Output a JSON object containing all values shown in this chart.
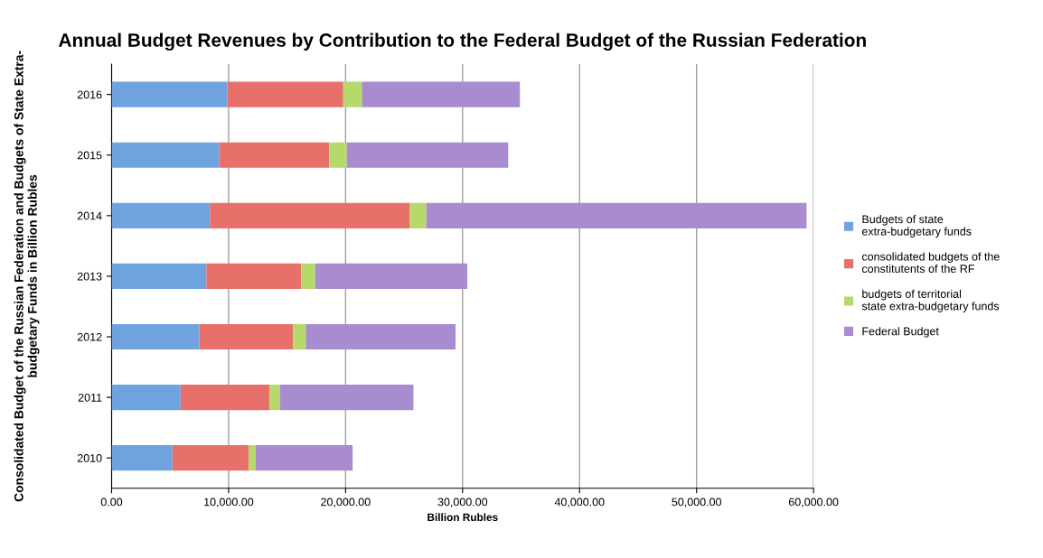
{
  "chart_data": {
    "type": "bar",
    "orientation": "horizontal",
    "stacked": true,
    "title": "Annual Budget Revenues by Contribution to the Federal Budget of the Russian Federation",
    "xlabel": "Billion Rubles",
    "ylabel": "Consolidated Budget of the Russian Federation and Budgets of State Extra-\nbudgetary Funds in Billion Rubles",
    "categories": [
      "2016",
      "2015",
      "2014",
      "2013",
      "2012",
      "2011",
      "2010"
    ],
    "series": [
      {
        "name": "Budgets of state\nextra-budgetary funds",
        "color": "#6fa3e0",
        "values": [
          9900,
          9200,
          8400,
          8100,
          7500,
          5900,
          5200
        ]
      },
      {
        "name": "consolidated budgets of the\nconstitutents of the RF",
        "color": "#e8706a",
        "values": [
          9900,
          9400,
          17100,
          8100,
          8000,
          7600,
          6500
        ]
      },
      {
        "name": "budgets of territorial\nstate extra-budgetary funds",
        "color": "#b5d96a",
        "values": [
          1600,
          1500,
          1400,
          1200,
          1100,
          900,
          600
        ]
      },
      {
        "name": "Federal Budget",
        "color": "#a98bcf",
        "values": [
          13500,
          13800,
          32500,
          13000,
          12800,
          11400,
          8300
        ]
      }
    ],
    "xlim": [
      0,
      60000
    ],
    "xticks": [
      {
        "value": 0,
        "label": "0.00"
      },
      {
        "value": 10000,
        "label": "10,000.00"
      },
      {
        "value": 20000,
        "label": "20,000.00"
      },
      {
        "value": 30000,
        "label": "30,000.00"
      },
      {
        "value": 40000,
        "label": "40,000.00"
      },
      {
        "value": 50000,
        "label": "50,000.00"
      },
      {
        "value": 60000,
        "label": "60,000.00"
      }
    ],
    "grid": "x",
    "legend": "right"
  }
}
